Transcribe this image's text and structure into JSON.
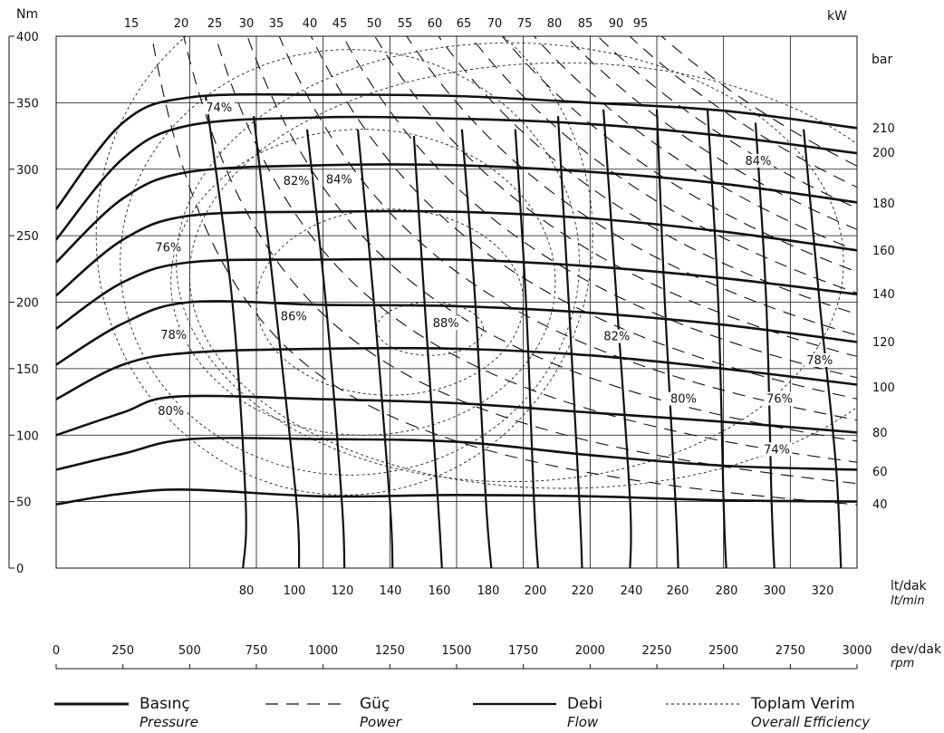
{
  "chart_data": {
    "type": "line",
    "title": "",
    "axes": {
      "y_left": {
        "unit": "Nm",
        "range": [
          0,
          400
        ],
        "ticks": [
          "0",
          "50",
          "100",
          "150",
          "200",
          "250",
          "300",
          "350",
          "400"
        ]
      },
      "x_top": {
        "unit": "kW",
        "ticks": [
          "15",
          "20",
          "25",
          "30",
          "35",
          "40",
          "45",
          "50",
          "55",
          "60",
          "65",
          "70",
          "75",
          "80",
          "85",
          "90",
          "95"
        ]
      },
      "y_right": {
        "unit": "bar",
        "ticks": [
          "210",
          "200",
          "180",
          "160",
          "140",
          "120",
          "100",
          "80",
          "60",
          "40"
        ]
      },
      "x_flow": {
        "unit": "lt/dak",
        "unit_alt": "lt/min",
        "ticks": [
          "80",
          "100",
          "120",
          "140",
          "160",
          "180",
          "200",
          "220",
          "240",
          "260",
          "280",
          "300",
          "320"
        ]
      },
      "x_speed": {
        "unit": "dev/dak",
        "unit_alt": "rpm",
        "range": [
          0,
          3000
        ],
        "ticks": [
          "0",
          "250",
          "500",
          "750",
          "1000",
          "1250",
          "1500",
          "1750",
          "2000",
          "2250",
          "2500",
          "2750",
          "3000"
        ]
      }
    },
    "grid": true,
    "pressure_series": [
      {
        "bar": 210,
        "points": [
          [
            0,
            270
          ],
          [
            250,
            335
          ],
          [
            500,
            354
          ],
          [
            1000,
            356
          ],
          [
            1500,
            355
          ],
          [
            2000,
            350
          ],
          [
            2500,
            344
          ],
          [
            3000,
            331
          ]
        ]
      },
      {
        "bar": 200,
        "points": [
          [
            0,
            247
          ],
          [
            250,
            308
          ],
          [
            500,
            333
          ],
          [
            1000,
            339
          ],
          [
            1500,
            338
          ],
          [
            2000,
            334
          ],
          [
            2500,
            325
          ],
          [
            3000,
            312
          ]
        ]
      },
      {
        "bar": 180,
        "points": [
          [
            0,
            230
          ],
          [
            250,
            278
          ],
          [
            500,
            298
          ],
          [
            1000,
            303
          ],
          [
            1500,
            303
          ],
          [
            2000,
            298
          ],
          [
            2500,
            289
          ],
          [
            3000,
            275
          ]
        ]
      },
      {
        "bar": 160,
        "points": [
          [
            0,
            205
          ],
          [
            250,
            247
          ],
          [
            500,
            265
          ],
          [
            1000,
            268
          ],
          [
            1500,
            268
          ],
          [
            2000,
            263
          ],
          [
            2500,
            253
          ],
          [
            3000,
            239
          ]
        ]
      },
      {
        "bar": 140,
        "points": [
          [
            0,
            180
          ],
          [
            250,
            215
          ],
          [
            500,
            230
          ],
          [
            1000,
            232
          ],
          [
            1500,
            232
          ],
          [
            2000,
            227
          ],
          [
            2500,
            218
          ],
          [
            3000,
            206
          ]
        ]
      },
      {
        "bar": 120,
        "points": [
          [
            0,
            153
          ],
          [
            250,
            184
          ],
          [
            500,
            200
          ],
          [
            1000,
            198
          ],
          [
            1500,
            197
          ],
          [
            2000,
            192
          ],
          [
            2500,
            183
          ],
          [
            3000,
            170
          ]
        ]
      },
      {
        "bar": 100,
        "points": [
          [
            0,
            127
          ],
          [
            250,
            153
          ],
          [
            500,
            162
          ],
          [
            1000,
            165
          ],
          [
            1500,
            165
          ],
          [
            2000,
            160
          ],
          [
            2500,
            150
          ],
          [
            3000,
            138
          ]
        ]
      },
      {
        "bar": 80,
        "points": [
          [
            0,
            100
          ],
          [
            250,
            117
          ],
          [
            450,
            129
          ],
          [
            1000,
            127
          ],
          [
            1500,
            124
          ],
          [
            2000,
            117
          ],
          [
            2500,
            110
          ],
          [
            3000,
            102
          ]
        ]
      },
      {
        "bar": 60,
        "points": [
          [
            0,
            74
          ],
          [
            250,
            86
          ],
          [
            500,
            97
          ],
          [
            1000,
            97
          ],
          [
            1500,
            95
          ],
          [
            2000,
            85
          ],
          [
            2500,
            77
          ],
          [
            3000,
            74
          ]
        ]
      },
      {
        "bar": 40,
        "points": [
          [
            0,
            48
          ],
          [
            250,
            56
          ],
          [
            500,
            59
          ],
          [
            1000,
            54
          ],
          [
            1500,
            55
          ],
          [
            2000,
            54
          ],
          [
            2500,
            51
          ],
          [
            3000,
            50
          ]
        ]
      }
    ],
    "power_kw": [
      15,
      20,
      25,
      30,
      35,
      40,
      45,
      50,
      55,
      60,
      65,
      70,
      75,
      80,
      85,
      90,
      95
    ],
    "flow_series": [
      {
        "lt_min": 80,
        "points": [
          [
            560,
            355
          ],
          [
            660,
            200
          ],
          [
            710,
            50
          ],
          [
            700,
            0
          ]
        ]
      },
      {
        "lt_min": 100,
        "points": [
          [
            740,
            340
          ],
          [
            820,
            200
          ],
          [
            900,
            50
          ],
          [
            910,
            0
          ]
        ]
      },
      {
        "lt_min": 120,
        "points": [
          [
            940,
            330
          ],
          [
            1010,
            200
          ],
          [
            1070,
            50
          ],
          [
            1080,
            0
          ]
        ]
      },
      {
        "lt_min": 140,
        "points": [
          [
            1130,
            330
          ],
          [
            1190,
            200
          ],
          [
            1250,
            50
          ],
          [
            1260,
            0
          ]
        ]
      },
      {
        "lt_min": 160,
        "points": [
          [
            1340,
            325
          ],
          [
            1380,
            200
          ],
          [
            1430,
            50
          ],
          [
            1445,
            0
          ]
        ]
      },
      {
        "lt_min": 180,
        "points": [
          [
            1520,
            330
          ],
          [
            1570,
            200
          ],
          [
            1610,
            50
          ],
          [
            1630,
            0
          ]
        ]
      },
      {
        "lt_min": 200,
        "points": [
          [
            1720,
            330
          ],
          [
            1760,
            200
          ],
          [
            1790,
            50
          ],
          [
            1805,
            0
          ]
        ]
      },
      {
        "lt_min": 220,
        "points": [
          [
            1880,
            340
          ],
          [
            1920,
            200
          ],
          [
            1960,
            50
          ],
          [
            1970,
            0
          ]
        ]
      },
      {
        "lt_min": 240,
        "points": [
          [
            2050,
            345
          ],
          [
            2100,
            200
          ],
          [
            2150,
            50
          ],
          [
            2150,
            0
          ]
        ]
      },
      {
        "lt_min": 260,
        "points": [
          [
            2250,
            345
          ],
          [
            2280,
            200
          ],
          [
            2320,
            50
          ],
          [
            2330,
            0
          ]
        ]
      },
      {
        "lt_min": 280,
        "points": [
          [
            2440,
            345
          ],
          [
            2480,
            200
          ],
          [
            2500,
            50
          ],
          [
            2510,
            0
          ]
        ]
      },
      {
        "lt_min": 300,
        "points": [
          [
            2620,
            335
          ],
          [
            2660,
            200
          ],
          [
            2680,
            50
          ],
          [
            2690,
            0
          ]
        ]
      },
      {
        "lt_min": 320,
        "points": [
          [
            2800,
            330
          ],
          [
            2860,
            200
          ],
          [
            2920,
            80
          ],
          [
            2940,
            0
          ]
        ]
      }
    ],
    "efficiency_labels": [
      {
        "text": "74%",
        "rpm": 610,
        "nm": 344
      },
      {
        "text": "82%",
        "rpm": 900,
        "nm": 289
      },
      {
        "text": "84%",
        "rpm": 1060,
        "nm": 290
      },
      {
        "text": "76%",
        "rpm": 420,
        "nm": 239
      },
      {
        "text": "86%",
        "rpm": 890,
        "nm": 187
      },
      {
        "text": "88%",
        "rpm": 1460,
        "nm": 182
      },
      {
        "text": "78%",
        "rpm": 440,
        "nm": 173
      },
      {
        "text": "82%",
        "rpm": 2100,
        "nm": 172
      },
      {
        "text": "80%",
        "rpm": 430,
        "nm": 116
      },
      {
        "text": "80%",
        "rpm": 2350,
        "nm": 125
      },
      {
        "text": "84%",
        "rpm": 2630,
        "nm": 304
      },
      {
        "text": "78%",
        "rpm": 2860,
        "nm": 154
      },
      {
        "text": "76%",
        "rpm": 2710,
        "nm": 125
      },
      {
        "text": "74%",
        "rpm": 2700,
        "nm": 87
      }
    ],
    "legend": [
      {
        "label": "Basınç",
        "sub": "Pressure",
        "style": "solid"
      },
      {
        "label": "Güç",
        "sub": "Power",
        "style": "dashed"
      },
      {
        "label": "Debi",
        "sub": "Flow",
        "style": "solid"
      },
      {
        "label": "Toplam Verim",
        "sub": "Overall Efficiency",
        "style": "dotted"
      }
    ]
  }
}
